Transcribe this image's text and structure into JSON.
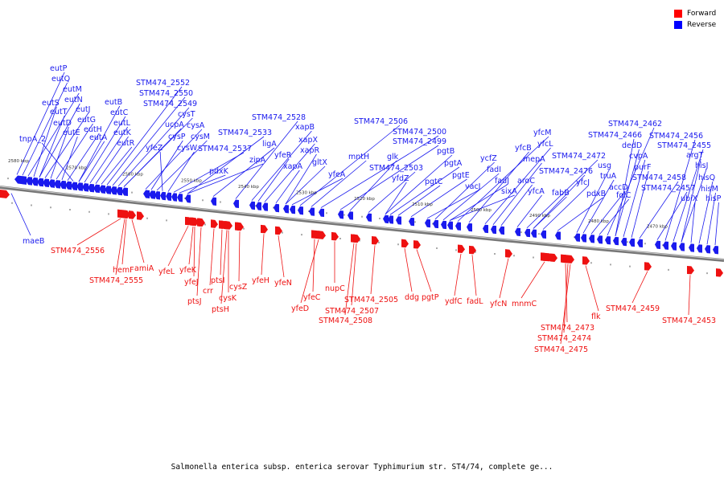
{
  "caption": "Salmonella enterica subsp. enterica serovar Typhimurium str. ST4/74, complete ge...",
  "legend": [
    {
      "label": "Forward",
      "color": "#ff0000"
    },
    {
      "label": "Reverse",
      "color": "#0000ff"
    }
  ],
  "colors": {
    "forward": "#ee1111",
    "reverse": "#1a1aee",
    "backbone": "#777777",
    "tick": "#000000"
  },
  "ruler_kbp": [
    "2580 kbp",
    "2570 kbp",
    "2560 kbp",
    "2550 kbp",
    "2540 kbp",
    "2530 kbp",
    "2520 kbp",
    "2510 kbp",
    "2500 kbp",
    "2490 kbp",
    "2480 kbp",
    "2470 kbp"
  ],
  "reverse_genes": [
    "eutP",
    "eutQ",
    "eutM",
    "eutS",
    "eutN",
    "eutT",
    "eutJ",
    "eutD",
    "eutG",
    "eutE",
    "eutH",
    "tnpA_2",
    "eutA",
    "eutB",
    "eutC",
    "eutL",
    "eutK",
    "eutR",
    "STM474_2552",
    "STM474_2550",
    "STM474_2549",
    "cysT",
    "ucpA",
    "cysA",
    "cysP",
    "cysM",
    "yfeZ",
    "cysW",
    "STM474_2537",
    "pdxK",
    "STM474_2533",
    "zipA",
    "ligA",
    "STM474_2528",
    "xapB",
    "yfeR",
    "xapX",
    "xapA",
    "xapR",
    "gltX",
    "yfeA",
    "STM474_2506",
    "mntH",
    "STM474_2500",
    "STM474_2499",
    "glk",
    "STM474_2503",
    "yfdZ",
    "pgtB",
    "pgtA",
    "pgtC",
    "pgtE",
    "vacJ",
    "ycfZ",
    "fadI",
    "fadJ",
    "sixA",
    "yfcM",
    "yfcB",
    "yfcL",
    "mepA",
    "aroC",
    "yfcA",
    "STM474_2472",
    "STM474_2476",
    "fabB",
    "yfcJ",
    "pdxB",
    "usg",
    "truA",
    "accD",
    "folC",
    "STM474_2462",
    "STM474_2466",
    "dedD",
    "cvpA",
    "purF",
    "STM474_2458",
    "STM474_2457",
    "STM474_2456",
    "STM474_2455",
    "argT",
    "hisJ",
    "ubiX",
    "hisQ",
    "hisM",
    "hisP",
    "maeB"
  ],
  "forward_genes": [
    "STM474_2556",
    "hemF",
    "amiA",
    "STM474_2555",
    "yfeL",
    "yfeK",
    "yfeJ",
    "ptsI",
    "crr",
    "ptsJ",
    "cysK",
    "cysZ",
    "ptsH",
    "yfeH",
    "yfeN",
    "yfeC",
    "nupC",
    "yfeD",
    "STM474_2505",
    "STM474_2507",
    "STM474_2508",
    "ddg",
    "pgtP",
    "ydfC",
    "fadL",
    "yfcN",
    "mnmC",
    "STM474_2473",
    "STM474_2474",
    "STM474_2475",
    "flk",
    "STM474_2459",
    "STM474_2453"
  ]
}
